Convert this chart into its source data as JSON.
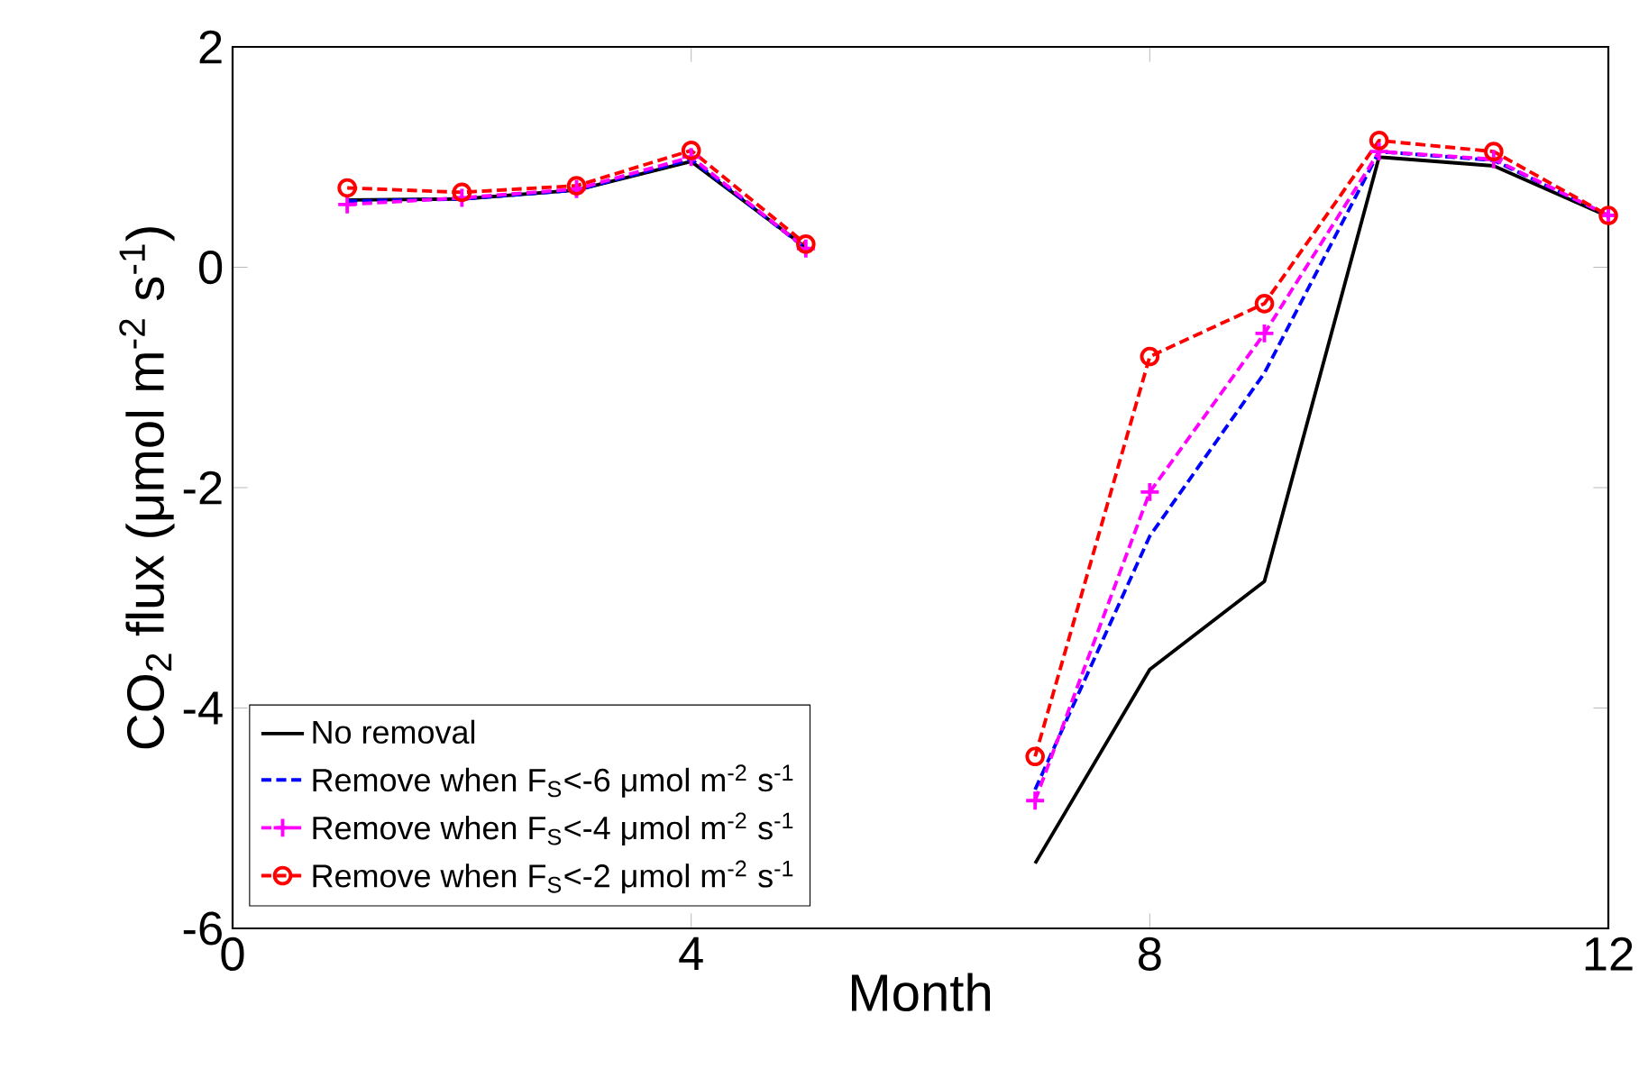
{
  "chart_data": {
    "type": "line",
    "xlabel": "Month",
    "ylabel": "CO$_{2}$ flux (μmol m$^{-2}$ s$^{-1}$)",
    "x": [
      1,
      2,
      3,
      4,
      5,
      6,
      7,
      8,
      9,
      10,
      11,
      12
    ],
    "xlim": [
      0,
      12
    ],
    "xticks": [
      0,
      4,
      8,
      12
    ],
    "ylim": [
      -6,
      2
    ],
    "yticks": [
      -6,
      -4,
      -2,
      0,
      2
    ],
    "grid": false,
    "legend": "bottom left",
    "series": [
      {
        "name": "No removal",
        "color": "#000000",
        "line_style": "solid",
        "marker": "none",
        "values": [
          0.61,
          0.62,
          0.7,
          0.96,
          0.18,
          null,
          -5.41,
          -3.65,
          -2.85,
          1.0,
          0.92,
          0.46
        ]
      },
      {
        "name": "Remove when F$_{S}$<-6 μmol m$^{-2}$ s$^{-1}$",
        "color": "#0000ff",
        "line_style": "dashed",
        "marker": "none",
        "values": [
          0.6,
          0.62,
          0.7,
          0.98,
          0.17,
          null,
          -4.74,
          -2.44,
          -0.96,
          1.05,
          0.97,
          0.47
        ]
      },
      {
        "name": "Remove when F$_{S}$<-4 μmol m$^{-2}$ s$^{-1}$",
        "color": "#ff00ff",
        "line_style": "dashed",
        "marker": "cross",
        "values": [
          0.57,
          0.63,
          0.71,
          1.0,
          0.17,
          null,
          -4.84,
          -2.04,
          -0.6,
          1.05,
          0.98,
          0.47
        ]
      },
      {
        "name": "Remove when F$_{S}$<-2 μmol m$^{-2}$ s$^{-1}$",
        "color": "#ff0000",
        "line_style": "dashed",
        "marker": "circle",
        "values": [
          0.72,
          0.68,
          0.74,
          1.06,
          0.21,
          null,
          -4.44,
          -0.81,
          -0.33,
          1.15,
          1.05,
          0.47
        ]
      }
    ]
  }
}
